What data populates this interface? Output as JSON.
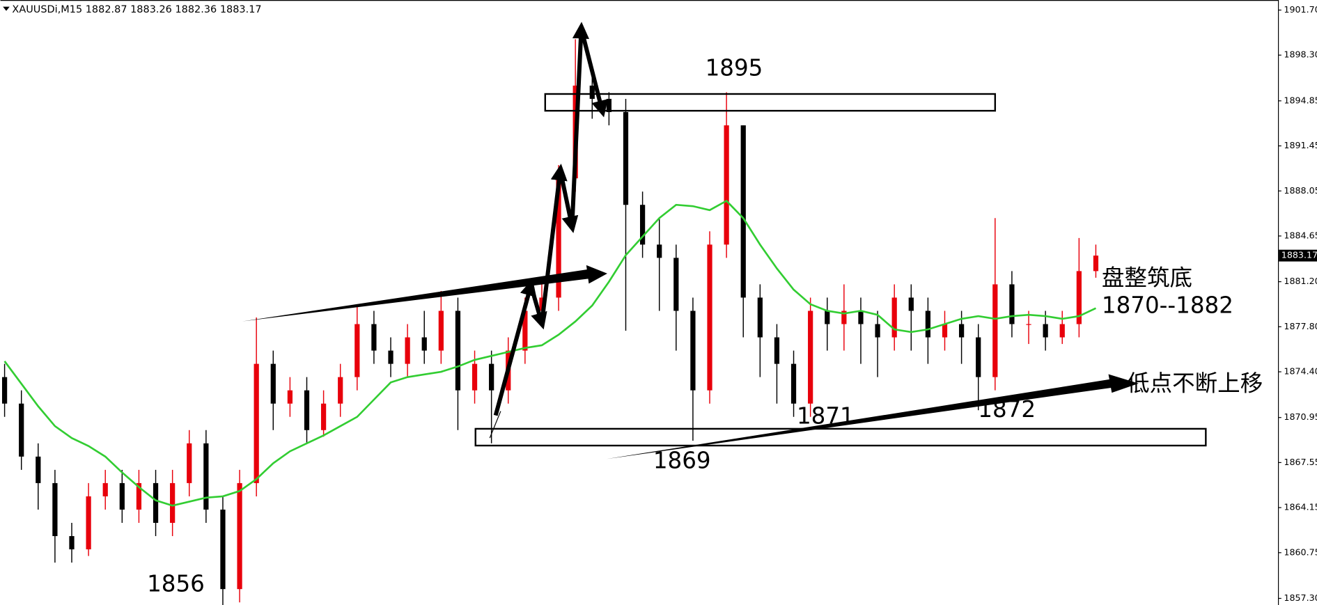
{
  "chart_data": {
    "type": "candlestick",
    "title": "XAUUSDi,M15  1882.87 1883.26 1882.36 1883.17",
    "categories": [
      null,
      null,
      null,
      null,
      null,
      null,
      null,
      null,
      null,
      null,
      null,
      null,
      null,
      null,
      null,
      null,
      null,
      null,
      null,
      null,
      null,
      null,
      null,
      null,
      null,
      null,
      null,
      null,
      null,
      null,
      null,
      null,
      null,
      null,
      null,
      null,
      null,
      null,
      null,
      null,
      null,
      null,
      null,
      null,
      null,
      null,
      null,
      null,
      null,
      null,
      null,
      null,
      null,
      null,
      null,
      null,
      null,
      null,
      null,
      null,
      null,
      null,
      null,
      null,
      null,
      null
    ],
    "open": [
      1874,
      1872,
      1868,
      1866,
      1862,
      1861,
      1865,
      1866,
      1864,
      1866,
      1863,
      1866,
      1869,
      1864,
      1858,
      1866,
      1875,
      1872,
      1873,
      1870,
      1872,
      1874,
      1878,
      1876,
      1875,
      1877,
      1876,
      1879,
      1873,
      1875,
      1873,
      1876,
      1879,
      1880,
      1889,
      1896,
      1895,
      1894,
      1887,
      1884,
      1883,
      1879,
      1873,
      1884,
      1893,
      1880,
      1877,
      1875,
      1872,
      1879,
      1878,
      1879,
      1878,
      1877,
      1880,
      1879,
      1877,
      1878,
      1877,
      1874,
      1881,
      1878,
      1878,
      1877,
      1878,
      1882
    ],
    "high": [
      1875,
      1873,
      1869,
      1867,
      1863,
      1866,
      1867,
      1867,
      1867,
      1867,
      1867,
      1870,
      1870,
      1865,
      1867,
      1878.5,
      1876,
      1874,
      1874,
      1873,
      1875,
      1879.5,
      1879,
      1877,
      1878,
      1879,
      1880.5,
      1880,
      1876,
      1876,
      1877,
      1880,
      1881,
      1890,
      1899.5,
      1897,
      1895.5,
      1895,
      1888,
      1886,
      1884,
      1880,
      1885,
      1895.5,
      1893,
      1881,
      1878,
      1876,
      1880,
      1880,
      1881,
      1880,
      1879,
      1881,
      1881,
      1880,
      1879,
      1879,
      1878,
      1886,
      1882,
      1879,
      1879,
      1879,
      1884.5,
      1884
    ],
    "low": [
      1871,
      1867,
      1864,
      1860,
      1860,
      1860.5,
      1864,
      1863,
      1863,
      1862,
      1862,
      1865,
      1863,
      1856,
      1857,
      1865,
      1870,
      1871,
      1869,
      1869.5,
      1871,
      1873,
      1875,
      1874,
      1874,
      1875,
      1875,
      1870,
      1872,
      1869,
      1872,
      1875,
      1878,
      1879,
      1888,
      1893.5,
      1893,
      1877.5,
      1883,
      1879,
      1876,
      1869.2,
      1872,
      1883,
      1877,
      1874,
      1872,
      1871,
      1871,
      1876,
      1876,
      1875,
      1874,
      1876,
      1876,
      1875,
      1876,
      1875,
      1871.5,
      1873,
      1877,
      1876.5,
      1876,
      1876.5,
      1877,
      1881.5
    ],
    "close": [
      1872,
      1868,
      1866,
      1862,
      1861,
      1865,
      1866,
      1864,
      1866,
      1863,
      1866,
      1869,
      1864,
      1858,
      1866,
      1875,
      1872,
      1873,
      1870,
      1872,
      1874,
      1878,
      1876,
      1875,
      1877,
      1876,
      1879,
      1873,
      1875,
      1873,
      1876,
      1879,
      1880,
      1889,
      1896,
      1895,
      1894,
      1887,
      1884,
      1883,
      1879,
      1873,
      1884,
      1893,
      1880,
      1877,
      1875,
      1872,
      1879,
      1878,
      1879,
      1878,
      1877,
      1880,
      1879,
      1877,
      1878,
      1877,
      1874,
      1881,
      1878,
      1878,
      1877,
      1878,
      1882,
      1883.17
    ],
    "up_color": "#e8000b",
    "down_color": "#000000",
    "ma": {
      "color": "#32cd32",
      "values": [
        1875.2,
        1873.5,
        1871.8,
        1870.3,
        1869.4,
        1868.8,
        1868.0,
        1866.8,
        1865.7,
        1864.7,
        1864.3,
        1864.6,
        1864.9,
        1865.0,
        1865.4,
        1866.3,
        1867.5,
        1868.4,
        1869.0,
        1869.6,
        1870.3,
        1871.0,
        1872.3,
        1873.6,
        1874.0,
        1874.2,
        1874.4,
        1874.8,
        1875.3,
        1875.6,
        1875.9,
        1876.2,
        1876.4,
        1877.2,
        1878.2,
        1879.4,
        1881.2,
        1883.2,
        1884.6,
        1886.0,
        1887.0,
        1886.9,
        1886.6,
        1887.3,
        1886.0,
        1884.0,
        1882.2,
        1880.6,
        1879.5,
        1879.0,
        1878.8,
        1879.0,
        1878.7,
        1877.6,
        1877.4,
        1877.6,
        1878.0,
        1878.4,
        1878.6,
        1878.4,
        1878.6,
        1878.7,
        1878.6,
        1878.4,
        1878.6,
        1879.2
      ]
    },
    "last_price": 1883.17,
    "ylim": [
      1856.8,
      1902.46
    ],
    "yticks": [
      {
        "value": 1901.7,
        "label": "1901.70"
      },
      {
        "value": 1898.3,
        "label": "1898.30"
      },
      1894.85,
      {
        "value": 1891.45,
        "label": "1891.45"
      },
      {
        "value": 1888.05,
        "label": "1888.05"
      },
      {
        "value": 1884.65,
        "label": "1884.65"
      },
      {
        "value": 1881.2,
        "label": "1881.20"
      },
      {
        "value": 1877.8,
        "label": "1877.80"
      },
      {
        "value": 1874.4,
        "label": "1874.40"
      },
      1870.95,
      {
        "value": 1867.55,
        "label": "1867.55"
      },
      {
        "value": 1864.15,
        "label": "1864.15"
      },
      {
        "value": 1860.75,
        "label": "1860.75"
      },
      {
        "value": 1857.3,
        "label": "1857.30"
      }
    ],
    "annotations": [
      "1895",
      "1856",
      "1869",
      "1871",
      "1872",
      "盘整筑底",
      "1870--1882",
      "低点不断上移"
    ]
  }
}
